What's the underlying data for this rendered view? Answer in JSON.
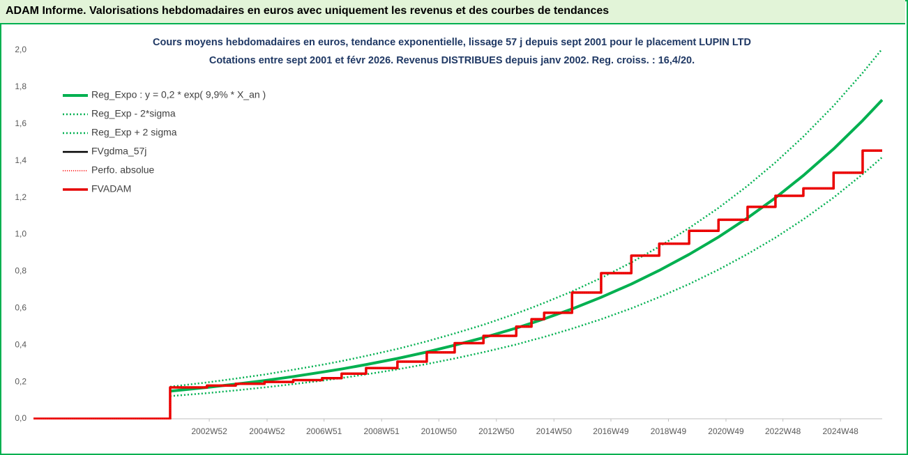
{
  "title": "ADAM Informe. Valorisations hebdomadaires en euros avec uniquement les revenus et des courbes de tendances",
  "chart_data": {
    "type": "line",
    "title": "Cours moyens hebdomadaires en euros, tendance exponentielle, lissage 57 j depuis sept 2001 pour le placement LUPIN LTD",
    "subtitle": "Cotations entre sept 2001 et févr 2026. Revenus DISTRIBUES depuis janv 2002. Reg. croiss. : 16,4/20.",
    "x": [
      1996.87,
      2001.62,
      2001.62,
      2002.9,
      2002.9,
      2003.9,
      2003.9,
      2004.9,
      2004.9,
      2005.9,
      2005.9,
      2006.9,
      2006.9,
      2007.58,
      2007.58,
      2008.43,
      2008.43,
      2009.52,
      2009.52,
      2010.54,
      2010.54,
      2011.51,
      2011.51,
      2012.51,
      2012.51,
      2013.65,
      2013.65,
      2014.18,
      2014.18,
      2014.62,
      2014.62,
      2015.59,
      2015.59,
      2016.6,
      2016.6,
      2017.65,
      2017.65,
      2018.62,
      2018.62,
      2019.66,
      2019.66,
      2020.68,
      2020.68,
      2021.69,
      2021.69,
      2022.66,
      2022.66,
      2023.63,
      2023.63,
      2024.68,
      2024.68,
      2025.69,
      2025.69,
      2026.37
    ],
    "series": [
      {
        "name": "Reg_Expo : y = 0,2 * exp( 9,9% *  X_an )",
        "color": "#00b050",
        "style": "solid",
        "values": [
          null,
          null,
          0.15,
          0.17,
          0.17,
          0.188,
          0.188,
          0.207,
          0.207,
          0.229,
          0.229,
          0.253,
          0.253,
          0.27,
          0.27,
          0.294,
          0.294,
          0.327,
          0.327,
          0.362,
          0.362,
          0.399,
          0.399,
          0.44,
          0.44,
          0.492,
          0.492,
          0.519,
          0.519,
          0.542,
          0.542,
          0.596,
          0.596,
          0.659,
          0.659,
          0.731,
          0.731,
          0.805,
          0.805,
          0.892,
          0.892,
          0.986,
          0.986,
          1.09,
          1.09,
          1.199,
          1.199,
          1.32,
          1.32,
          1.464,
          1.464,
          1.618,
          1.618,
          1.73
        ]
      },
      {
        "name": "Reg_Exp - 2*sigma",
        "color": "#00b050",
        "style": "dotted",
        "values": [
          null,
          null,
          0.123,
          0.139,
          0.139,
          0.154,
          0.154,
          0.17,
          0.17,
          0.188,
          0.188,
          0.207,
          0.207,
          0.221,
          0.221,
          0.241,
          0.241,
          0.268,
          0.268,
          0.297,
          0.297,
          0.327,
          0.327,
          0.361,
          0.361,
          0.403,
          0.403,
          0.426,
          0.426,
          0.444,
          0.444,
          0.489,
          0.489,
          0.54,
          0.54,
          0.599,
          0.599,
          0.66,
          0.66,
          0.731,
          0.731,
          0.809,
          0.809,
          0.894,
          0.894,
          0.983,
          0.983,
          1.082,
          1.082,
          1.2,
          1.2,
          1.327,
          1.327,
          1.419
        ]
      },
      {
        "name": "Reg_Exp + 2 sigma",
        "color": "#00b050",
        "style": "dotted",
        "values": [
          null,
          null,
          0.174,
          0.197,
          0.197,
          0.218,
          0.218,
          0.24,
          0.24,
          0.266,
          0.266,
          0.293,
          0.293,
          0.313,
          0.313,
          0.341,
          0.341,
          0.379,
          0.379,
          0.42,
          0.42,
          0.463,
          0.463,
          0.51,
          0.51,
          0.571,
          0.571,
          0.602,
          0.602,
          0.629,
          0.629,
          0.691,
          0.691,
          0.764,
          0.764,
          0.848,
          0.848,
          0.934,
          0.934,
          1.035,
          1.035,
          1.144,
          1.144,
          1.264,
          1.264,
          1.391,
          1.391,
          1.531,
          1.531,
          1.698,
          1.698,
          1.877,
          1.877,
          2.007
        ]
      },
      {
        "name": "FVgdma_57j",
        "color": "#000000",
        "style": "solid",
        "values": [
          0,
          0,
          0.17,
          0.17,
          0.18,
          0.18,
          0.19,
          0.19,
          0.2,
          0.2,
          0.21,
          0.21,
          0.22,
          0.22,
          0.245,
          0.245,
          0.275,
          0.275,
          0.31,
          0.31,
          0.36,
          0.36,
          0.41,
          0.41,
          0.45,
          0.45,
          0.5,
          0.5,
          0.54,
          0.54,
          0.575,
          0.575,
          0.685,
          0.685,
          0.79,
          0.79,
          0.885,
          0.885,
          0.95,
          0.95,
          1.02,
          1.02,
          1.08,
          1.08,
          1.15,
          1.15,
          1.21,
          1.21,
          1.25,
          1.25,
          1.335,
          1.335,
          1.455,
          1.455
        ]
      },
      {
        "name": "Perfo. absolue",
        "color": "#ff0000",
        "style": "dotted",
        "values": [
          0,
          0,
          0.17,
          0.17,
          0.18,
          0.18,
          0.19,
          0.19,
          0.2,
          0.2,
          0.21,
          0.21,
          0.22,
          0.22,
          0.245,
          0.245,
          0.275,
          0.275,
          0.31,
          0.31,
          0.36,
          0.36,
          0.41,
          0.41,
          0.45,
          0.45,
          0.5,
          0.5,
          0.54,
          0.54,
          0.575,
          0.575,
          0.685,
          0.685,
          0.79,
          0.79,
          0.885,
          0.885,
          0.95,
          0.95,
          1.02,
          1.02,
          1.08,
          1.08,
          1.15,
          1.15,
          1.21,
          1.21,
          1.25,
          1.25,
          1.335,
          1.335,
          1.455,
          1.455
        ]
      },
      {
        "name": "FVADAM",
        "color": "#e50000",
        "style": "solid",
        "values": [
          0,
          0,
          0.17,
          0.17,
          0.18,
          0.18,
          0.19,
          0.19,
          0.2,
          0.2,
          0.21,
          0.21,
          0.22,
          0.22,
          0.245,
          0.245,
          0.275,
          0.275,
          0.31,
          0.31,
          0.36,
          0.36,
          0.41,
          0.41,
          0.45,
          0.45,
          0.5,
          0.5,
          0.54,
          0.54,
          0.575,
          0.575,
          0.685,
          0.685,
          0.79,
          0.79,
          0.885,
          0.885,
          0.95,
          0.95,
          1.02,
          1.02,
          1.08,
          1.08,
          1.15,
          1.15,
          1.21,
          1.21,
          1.25,
          1.25,
          1.335,
          1.335,
          1.455,
          1.455
        ]
      }
    ],
    "xlim": [
      1996.87,
      2026.37
    ],
    "xticks": [
      {
        "value": 2002.98,
        "label": "2002W52"
      },
      {
        "value": 2004.99,
        "label": "2004W52"
      },
      {
        "value": 2006.97,
        "label": "2006W51"
      },
      {
        "value": 2008.97,
        "label": "2008W51"
      },
      {
        "value": 2010.96,
        "label": "2010W50"
      },
      {
        "value": 2012.96,
        "label": "2012W50"
      },
      {
        "value": 2014.96,
        "label": "2014W50"
      },
      {
        "value": 2016.94,
        "label": "2016W49"
      },
      {
        "value": 2018.94,
        "label": "2018W49"
      },
      {
        "value": 2020.94,
        "label": "2020W49"
      },
      {
        "value": 2022.92,
        "label": "2022W48"
      },
      {
        "value": 2024.92,
        "label": "2024W48"
      }
    ],
    "ylim": [
      0,
      2
    ],
    "yticks": [
      {
        "value": 0,
        "label": "0,0"
      },
      {
        "value": 0.2,
        "label": "0,2"
      },
      {
        "value": 0.4,
        "label": "0,4"
      },
      {
        "value": 0.6,
        "label": "0,6"
      },
      {
        "value": 0.8,
        "label": "0,8"
      },
      {
        "value": 1,
        "label": "1,0"
      },
      {
        "value": 1.2,
        "label": "1,2"
      },
      {
        "value": 1.4,
        "label": "1,4"
      },
      {
        "value": 1.6,
        "label": "1,6"
      },
      {
        "value": 1.8,
        "label": "1,8"
      },
      {
        "value": 2,
        "label": "2,0"
      }
    ],
    "grid": false,
    "legend": "upper-left"
  }
}
